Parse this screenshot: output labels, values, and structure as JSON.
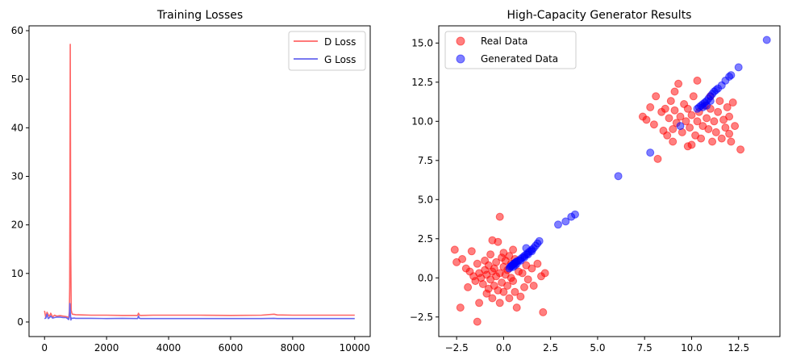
{
  "chart_data": [
    {
      "type": "line",
      "title": "Training Losses",
      "xlabel": "",
      "ylabel": "",
      "xlim": [
        -500,
        10500
      ],
      "ylim": [
        -3,
        61
      ],
      "xticks": [
        0,
        2000,
        4000,
        6000,
        8000,
        10000
      ],
      "xtick_labels": [
        "0",
        "2000",
        "4000",
        "6000",
        "8000",
        "10000"
      ],
      "yticks": [
        0,
        10,
        20,
        30,
        40,
        50,
        60
      ],
      "ytick_labels": [
        "0",
        "10",
        "20",
        "30",
        "40",
        "50",
        "60"
      ],
      "legend": "top-right",
      "series": [
        {
          "name": "D Loss",
          "color": "#ff6666",
          "x": [
            0,
            40,
            80,
            120,
            160,
            200,
            260,
            320,
            400,
            500,
            600,
            700,
            780,
            800,
            810,
            820,
            830,
            845,
            860,
            880,
            900,
            950,
            1000,
            1200,
            1500,
            2000,
            2500,
            3000,
            3030,
            3060,
            3100,
            3500,
            4000,
            5000,
            6000,
            7000,
            7400,
            7500,
            8000,
            9000,
            10000
          ],
          "y": [
            2.3,
            0.9,
            2.0,
            1.5,
            1.1,
            1.8,
            1.0,
            1.4,
            1.2,
            1.3,
            1.2,
            1.1,
            0.9,
            2.0,
            7.0,
            30.0,
            57.2,
            15.0,
            2.4,
            1.8,
            1.6,
            1.55,
            1.5,
            1.45,
            1.4,
            1.4,
            1.35,
            1.35,
            1.8,
            1.4,
            1.35,
            1.4,
            1.4,
            1.4,
            1.35,
            1.4,
            1.6,
            1.45,
            1.4,
            1.4,
            1.4
          ]
        },
        {
          "name": "G Loss",
          "color": "#6666ee",
          "x": [
            0,
            40,
            80,
            120,
            160,
            200,
            260,
            320,
            400,
            500,
            600,
            700,
            780,
            800,
            815,
            830,
            850,
            870,
            900,
            950,
            1000,
            1200,
            1500,
            2000,
            2500,
            3000,
            3030,
            3060,
            3100,
            3500,
            4000,
            5000,
            6000,
            7000,
            7400,
            7500,
            8000,
            9000,
            10000
          ],
          "y": [
            0.7,
            0.8,
            1.6,
            0.7,
            0.9,
            1.2,
            0.8,
            0.9,
            1.0,
            1.0,
            0.9,
            0.9,
            0.5,
            1.2,
            3.8,
            2.0,
            0.4,
            0.8,
            0.75,
            0.8,
            0.75,
            0.75,
            0.75,
            0.7,
            0.75,
            0.7,
            1.2,
            0.75,
            0.7,
            0.7,
            0.7,
            0.7,
            0.7,
            0.7,
            0.75,
            0.7,
            0.7,
            0.7,
            0.7
          ]
        }
      ]
    },
    {
      "type": "scatter",
      "title": "High-Capacity Generator Results",
      "xlabel": "",
      "ylabel": "",
      "xlim": [
        -3.45,
        14.7
      ],
      "ylim": [
        -3.75,
        16.1
      ],
      "xticks": [
        -2.5,
        0.0,
        2.5,
        5.0,
        7.5,
        10.0,
        12.5
      ],
      "xtick_labels": [
        "−2.5",
        "0.0",
        "2.5",
        "5.0",
        "7.5",
        "10.0",
        "12.5"
      ],
      "yticks": [
        -2.5,
        0.0,
        2.5,
        5.0,
        7.5,
        10.0,
        12.5,
        15.0
      ],
      "ytick_labels": [
        "−2.5",
        "0.0",
        "2.5",
        "5.0",
        "7.5",
        "10.0",
        "12.5",
        "15.0"
      ],
      "legend": "top-left",
      "series": [
        {
          "name": "Real Data",
          "color": "#ff0000",
          "points": [
            [
              -2.6,
              1.8
            ],
            [
              -2.5,
              1.0
            ],
            [
              -2.3,
              -1.9
            ],
            [
              -2.2,
              1.2
            ],
            [
              -2.0,
              0.6
            ],
            [
              -1.8,
              0.4
            ],
            [
              -1.7,
              1.7
            ],
            [
              -1.6,
              0.1
            ],
            [
              -1.5,
              -0.2
            ],
            [
              -1.4,
              -2.8
            ],
            [
              -1.4,
              0.9
            ],
            [
              -1.3,
              0.3
            ],
            [
              -1.3,
              -1.6
            ],
            [
              -1.2,
              0.0
            ],
            [
              -1.1,
              -0.4
            ],
            [
              -1.0,
              1.1
            ],
            [
              -1.0,
              0.5
            ],
            [
              -0.9,
              -1.0
            ],
            [
              -0.9,
              0.2
            ],
            [
              -0.8,
              -0.7
            ],
            [
              -0.8,
              0.8
            ],
            [
              -0.7,
              1.5
            ],
            [
              -0.7,
              -0.1
            ],
            [
              -0.6,
              0.4
            ],
            [
              -0.6,
              -1.3
            ],
            [
              -0.5,
              0.6
            ],
            [
              -0.5,
              -0.5
            ],
            [
              -0.4,
              1.0
            ],
            [
              -0.4,
              0.1
            ],
            [
              -0.3,
              -0.8
            ],
            [
              -0.3,
              2.3
            ],
            [
              -0.2,
              3.9
            ],
            [
              -0.2,
              0.3
            ],
            [
              -0.2,
              -1.6
            ],
            [
              -0.1,
              1.3
            ],
            [
              -0.1,
              -0.3
            ],
            [
              0.0,
              0.7
            ],
            [
              0.0,
              -0.9
            ],
            [
              0.1,
              0.2
            ],
            [
              0.1,
              1.1
            ],
            [
              0.2,
              -0.5
            ],
            [
              0.2,
              0.5
            ],
            [
              0.3,
              1.4
            ],
            [
              0.3,
              -1.3
            ],
            [
              0.4,
              0.0
            ],
            [
              0.4,
              0.9
            ],
            [
              0.5,
              -0.2
            ],
            [
              0.6,
              1.2
            ],
            [
              0.6,
              -0.9
            ],
            [
              0.7,
              -1.9
            ],
            [
              0.8,
              0.4
            ],
            [
              0.9,
              -1.2
            ],
            [
              1.0,
              0.3
            ],
            [
              1.1,
              -0.6
            ],
            [
              1.2,
              0.8
            ],
            [
              1.3,
              -0.1
            ],
            [
              1.5,
              0.6
            ],
            [
              1.6,
              -0.5
            ],
            [
              1.8,
              0.9
            ],
            [
              2.0,
              0.1
            ],
            [
              2.1,
              -2.2
            ],
            [
              2.2,
              0.3
            ],
            [
              -1.9,
              -0.6
            ],
            [
              -0.6,
              2.4
            ],
            [
              0.0,
              1.6
            ],
            [
              0.5,
              1.8
            ],
            [
              7.4,
              10.3
            ],
            [
              7.6,
              10.1
            ],
            [
              7.8,
              10.9
            ],
            [
              8.0,
              9.8
            ],
            [
              8.1,
              11.6
            ],
            [
              8.2,
              7.6
            ],
            [
              8.4,
              10.6
            ],
            [
              8.5,
              9.4
            ],
            [
              8.6,
              10.8
            ],
            [
              8.7,
              9.1
            ],
            [
              8.8,
              10.2
            ],
            [
              8.9,
              11.3
            ],
            [
              9.0,
              9.5
            ],
            [
              9.0,
              8.7
            ],
            [
              9.1,
              10.7
            ],
            [
              9.2,
              9.9
            ],
            [
              9.3,
              12.4
            ],
            [
              9.4,
              10.3
            ],
            [
              9.5,
              9.3
            ],
            [
              9.6,
              11.1
            ],
            [
              9.7,
              10.0
            ],
            [
              9.8,
              8.4
            ],
            [
              9.8,
              10.8
            ],
            [
              9.9,
              9.6
            ],
            [
              10.0,
              10.4
            ],
            [
              10.1,
              11.6
            ],
            [
              10.2,
              9.1
            ],
            [
              10.3,
              10.0
            ],
            [
              10.3,
              12.6
            ],
            [
              10.4,
              10.6
            ],
            [
              10.5,
              8.9
            ],
            [
              10.6,
              9.7
            ],
            [
              10.7,
              11.0
            ],
            [
              10.8,
              10.2
            ],
            [
              10.9,
              9.5
            ],
            [
              11.0,
              10.8
            ],
            [
              11.1,
              8.7
            ],
            [
              11.2,
              10.0
            ],
            [
              11.3,
              9.3
            ],
            [
              11.4,
              10.6
            ],
            [
              11.5,
              11.3
            ],
            [
              11.6,
              8.9
            ],
            [
              11.7,
              10.1
            ],
            [
              11.8,
              9.6
            ],
            [
              11.9,
              10.9
            ],
            [
              12.0,
              10.3
            ],
            [
              12.1,
              8.7
            ],
            [
              12.2,
              11.2
            ],
            [
              12.3,
              9.7
            ],
            [
              12.6,
              8.2
            ],
            [
              9.1,
              11.9
            ],
            [
              10.0,
              8.5
            ],
            [
              11.0,
              11.6
            ],
            [
              12.0,
              9.2
            ]
          ]
        },
        {
          "name": "Generated Data",
          "color": "#0000ff",
          "points": [
            [
              0.3,
              0.6
            ],
            [
              0.35,
              0.7
            ],
            [
              0.4,
              0.75
            ],
            [
              0.45,
              0.8
            ],
            [
              0.5,
              0.85
            ],
            [
              0.55,
              0.9
            ],
            [
              0.6,
              0.95
            ],
            [
              0.65,
              1.0
            ],
            [
              0.7,
              1.05
            ],
            [
              0.8,
              1.1
            ],
            [
              0.9,
              1.2
            ],
            [
              1.0,
              1.3
            ],
            [
              1.1,
              1.4
            ],
            [
              1.2,
              1.5
            ],
            [
              1.3,
              1.6
            ],
            [
              1.4,
              1.7
            ],
            [
              1.5,
              1.8
            ],
            [
              1.6,
              1.9
            ],
            [
              1.7,
              2.05
            ],
            [
              1.8,
              2.2
            ],
            [
              1.9,
              2.35
            ],
            [
              0.5,
              0.7
            ],
            [
              0.6,
              0.8
            ],
            [
              0.7,
              0.9
            ],
            [
              0.9,
              1.1
            ],
            [
              1.1,
              1.3
            ],
            [
              1.3,
              1.5
            ],
            [
              1.5,
              1.7
            ],
            [
              1.2,
              1.9
            ],
            [
              2.9,
              3.4
            ],
            [
              3.3,
              3.6
            ],
            [
              3.6,
              3.9
            ],
            [
              3.8,
              4.05
            ],
            [
              6.1,
              6.5
            ],
            [
              7.8,
              8.0
            ],
            [
              9.4,
              9.7
            ],
            [
              10.3,
              10.8
            ],
            [
              10.4,
              10.9
            ],
            [
              10.5,
              11.0
            ],
            [
              10.6,
              11.1
            ],
            [
              10.7,
              11.2
            ],
            [
              10.8,
              11.3
            ],
            [
              10.9,
              11.45
            ],
            [
              11.0,
              11.6
            ],
            [
              11.1,
              11.75
            ],
            [
              11.2,
              11.9
            ],
            [
              11.3,
              12.0
            ],
            [
              11.4,
              12.1
            ],
            [
              11.6,
              12.3
            ],
            [
              11.8,
              12.6
            ],
            [
              12.0,
              12.85
            ],
            [
              12.1,
              12.95
            ],
            [
              12.5,
              13.45
            ],
            [
              14.0,
              15.2
            ],
            [
              10.6,
              10.9
            ],
            [
              10.8,
              11.0
            ],
            [
              11.0,
              11.3
            ]
          ]
        }
      ]
    }
  ]
}
